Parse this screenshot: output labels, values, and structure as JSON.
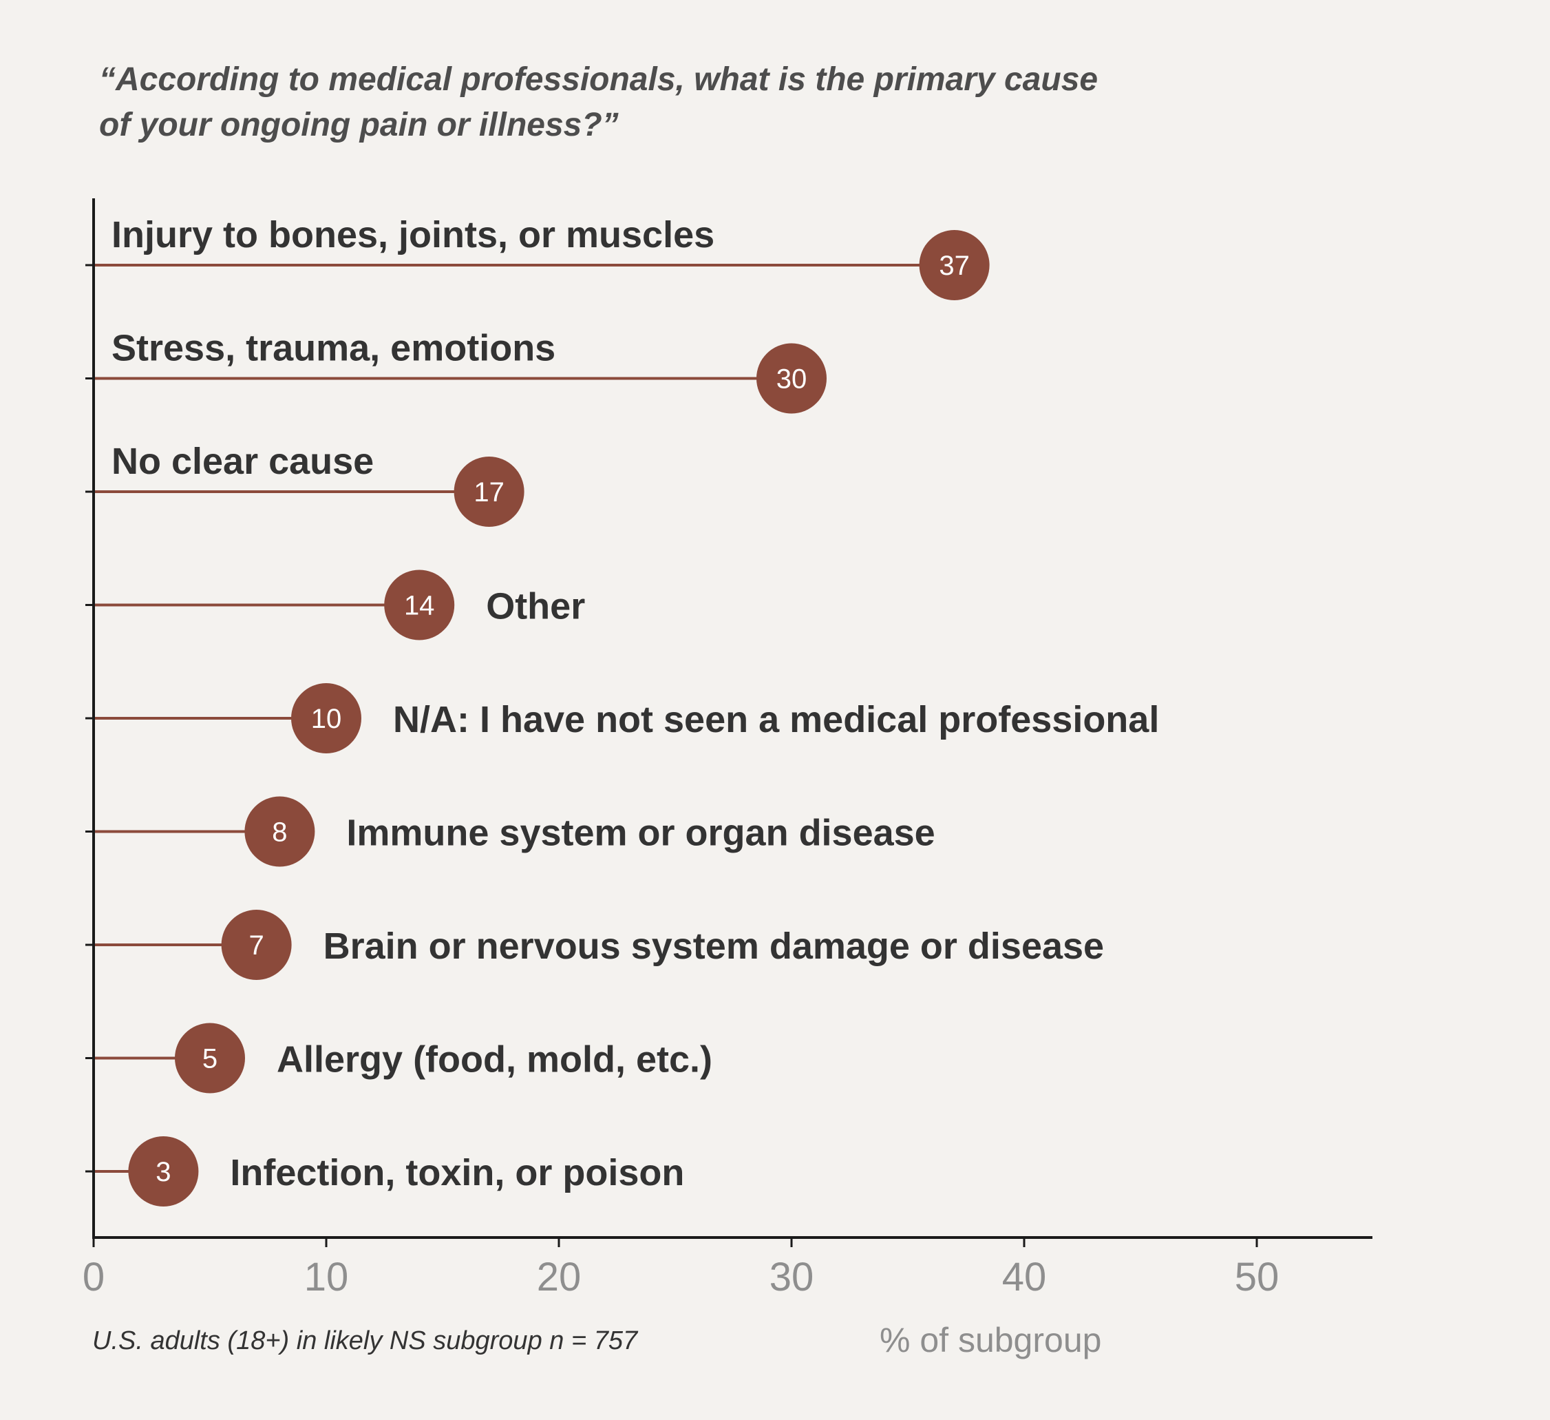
{
  "chart_data": {
    "type": "lollipop",
    "title_line1": "“According to medical professionals, what is the primary cause",
    "title_line2": "of your ongoing pain or illness?”",
    "categories": [
      "Injury to bones, joints, or muscles",
      "Stress, trauma, emotions",
      "No clear cause",
      "Other",
      "N/A: I have not seen a medical professional",
      "Immune system or organ disease",
      "Brain or nervous system damage or disease",
      "Allergy (food, mold, etc.)",
      "Infection, toxin, or poison"
    ],
    "values": [
      37,
      30,
      17,
      14,
      10,
      8,
      7,
      5,
      3
    ],
    "label_position": [
      "above",
      "above",
      "above",
      "right",
      "right",
      "right",
      "right",
      "right",
      "right"
    ],
    "xlabel": "% of subgroup",
    "xlim": [
      0,
      55
    ],
    "xticks": [
      0,
      10,
      20,
      30,
      40,
      50
    ],
    "note": "U.S. adults (18+) in likely NS subgroup n = 757",
    "colors": {
      "marker": "#8b4a3b",
      "stem": "#8b4a3b",
      "axis": "#1a1a1a"
    }
  }
}
